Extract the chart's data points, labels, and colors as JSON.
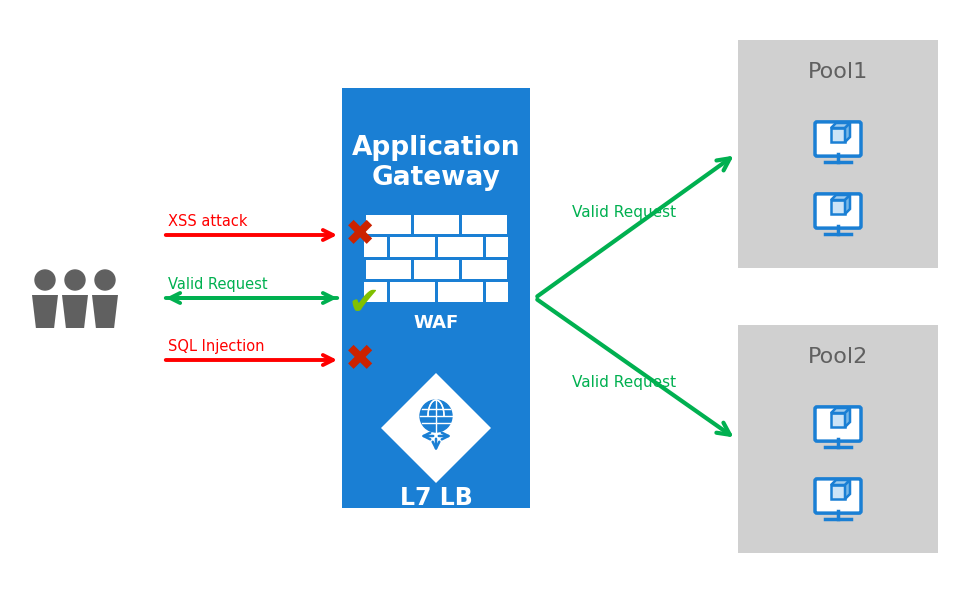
{
  "bg_color": "#ffffff",
  "gateway_color": "#1a7fd4",
  "gateway_text": "Application\nGateway",
  "gateway_text_color": "#ffffff",
  "waf_label": "WAF",
  "lb_label": "L7 LB",
  "pool1_label": "Pool1",
  "pool2_label": "Pool2",
  "pool_bg_color": "#d0d0d0",
  "pool_text_color": "#606060",
  "arrow_green": "#00b050",
  "arrow_red": "#ff0000",
  "xmark_color": "#cc2200",
  "check_color": "#80c000",
  "xss_label": "XSS attack",
  "valid_label": "Valid Request",
  "sql_label": "SQL Injection",
  "valid_req_label": "Valid Request",
  "person_color": "#606060",
  "icon_blue": "#1a7fd4",
  "brick_color": "#ffffff",
  "figw": 9.68,
  "figh": 5.93,
  "dpi": 100
}
